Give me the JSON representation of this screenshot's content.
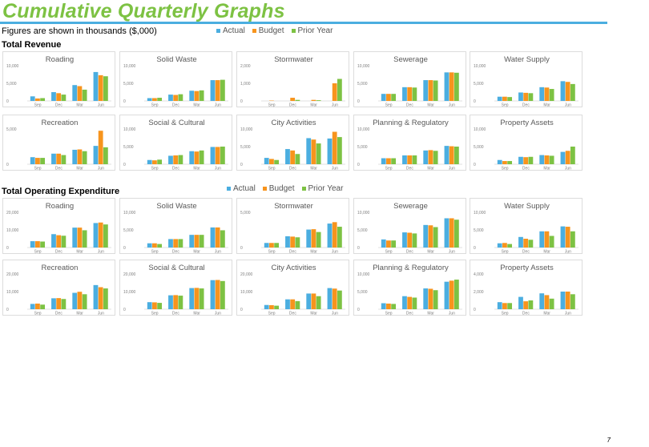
{
  "page": {
    "title": "Cumulative Quarterly Graphs",
    "subtitle": "Figures are shown in thousands ($,000)",
    "page_number": "7",
    "legend": [
      {
        "label": "Actual",
        "color": "#4baee0"
      },
      {
        "label": "Budget",
        "color": "#f7941d"
      },
      {
        "label": "Prior Year",
        "color": "#7dc243"
      }
    ],
    "sections": [
      {
        "title": "Total Revenue"
      },
      {
        "title": "Total Operating Expenditure"
      }
    ]
  },
  "chart_data": [
    {
      "id": "rev-roading",
      "type": "bar",
      "title": "Roading",
      "categories": [
        "Sep",
        "Dec",
        "Mar",
        "Jun"
      ],
      "ylim": [
        0,
        10000
      ],
      "yticks": [
        "0",
        "5,000",
        "10,000"
      ],
      "series": [
        {
          "name": "Actual",
          "values": [
            1300,
            2500,
            4500,
            8200
          ]
        },
        {
          "name": "Budget",
          "values": [
            700,
            2200,
            4200,
            7300
          ]
        },
        {
          "name": "Prior Year",
          "values": [
            800,
            1800,
            3200,
            7000
          ]
        }
      ]
    },
    {
      "id": "rev-solid-waste",
      "type": "bar",
      "title": "Solid Waste",
      "categories": [
        "Sep",
        "Dec",
        "Mar",
        "Jun"
      ],
      "ylim": [
        0,
        10000
      ],
      "yticks": [
        "0",
        "5,000",
        "10,000"
      ],
      "series": [
        {
          "name": "Actual",
          "values": [
            800,
            1800,
            2900,
            5900
          ]
        },
        {
          "name": "Budget",
          "values": [
            800,
            1700,
            2800,
            5900
          ]
        },
        {
          "name": "Prior Year",
          "values": [
            900,
            1900,
            3000,
            6000
          ]
        }
      ]
    },
    {
      "id": "rev-stormwater",
      "type": "bar",
      "title": "Stormwater",
      "categories": [
        "Sep",
        "Dec",
        "Mar",
        "Jun"
      ],
      "ylim": [
        0,
        2000
      ],
      "yticks": [
        "0",
        "1,000",
        "2,000"
      ],
      "series": [
        {
          "name": "Actual",
          "values": [
            0,
            0,
            0,
            0
          ]
        },
        {
          "name": "Budget",
          "values": [
            20,
            180,
            60,
            1000
          ]
        },
        {
          "name": "Prior Year",
          "values": [
            0,
            60,
            40,
            1250
          ]
        }
      ]
    },
    {
      "id": "rev-sewerage",
      "type": "bar",
      "title": "Sewerage",
      "categories": [
        "Sep",
        "Dec",
        "Mar",
        "Jun"
      ],
      "ylim": [
        0,
        10000
      ],
      "yticks": [
        "0",
        "5,000",
        "10,000"
      ],
      "series": [
        {
          "name": "Actual",
          "values": [
            2000,
            3900,
            5900,
            8100
          ]
        },
        {
          "name": "Budget",
          "values": [
            2000,
            3900,
            5900,
            8100
          ]
        },
        {
          "name": "Prior Year",
          "values": [
            2000,
            3800,
            5800,
            8000
          ]
        }
      ]
    },
    {
      "id": "rev-water-supply",
      "type": "bar",
      "title": "Water Supply",
      "categories": [
        "Sep",
        "Dec",
        "Mar",
        "Jun"
      ],
      "ylim": [
        0,
        10000
      ],
      "yticks": [
        "0",
        "5,000",
        "10,000"
      ],
      "series": [
        {
          "name": "Actual",
          "values": [
            1200,
            2400,
            3900,
            5600
          ]
        },
        {
          "name": "Budget",
          "values": [
            1200,
            2300,
            3800,
            5400
          ]
        },
        {
          "name": "Prior Year",
          "values": [
            1100,
            2200,
            3400,
            4800
          ]
        }
      ]
    },
    {
      "id": "rev-recreation",
      "type": "bar",
      "title": "Recreation",
      "categories": [
        "Sep",
        "Dec",
        "Mar",
        "Jun"
      ],
      "ylim": [
        0,
        5000
      ],
      "yticks": [
        "0",
        "5,000"
      ],
      "series": [
        {
          "name": "Actual",
          "values": [
            1000,
            1500,
            2050,
            2600
          ]
        },
        {
          "name": "Budget",
          "values": [
            900,
            1500,
            2100,
            4750
          ]
        },
        {
          "name": "Prior Year",
          "values": [
            900,
            1300,
            1850,
            2400
          ]
        }
      ]
    },
    {
      "id": "rev-social-cultural",
      "type": "bar",
      "title": "Social & Cultural",
      "categories": [
        "Sep",
        "Dec",
        "Mar",
        "Jun"
      ],
      "ylim": [
        0,
        10000
      ],
      "yticks": [
        "0",
        "5,000",
        "10,000"
      ],
      "series": [
        {
          "name": "Actual",
          "values": [
            1200,
            2400,
            3700,
            4900
          ]
        },
        {
          "name": "Budget",
          "values": [
            1100,
            2500,
            3600,
            4900
          ]
        },
        {
          "name": "Prior Year",
          "values": [
            1300,
            2600,
            3900,
            5000
          ]
        }
      ]
    },
    {
      "id": "rev-city-activities",
      "type": "bar",
      "title": "City Activities",
      "categories": [
        "Sep",
        "Dec",
        "Mar",
        "Jun"
      ],
      "ylim": [
        0,
        10000
      ],
      "yticks": [
        "0",
        "5,000",
        "10,000"
      ],
      "series": [
        {
          "name": "Actual",
          "values": [
            1800,
            4300,
            7400,
            7300
          ]
        },
        {
          "name": "Budget",
          "values": [
            1500,
            3900,
            7000,
            9200
          ]
        },
        {
          "name": "Prior Year",
          "values": [
            1200,
            2900,
            5900,
            7700
          ]
        }
      ]
    },
    {
      "id": "rev-planning-regulatory",
      "type": "bar",
      "title": "Planning & Regulatory",
      "categories": [
        "Sep",
        "Dec",
        "Mar",
        "Jun"
      ],
      "ylim": [
        0,
        10000
      ],
      "yticks": [
        "0",
        "5,000",
        "10,000"
      ],
      "series": [
        {
          "name": "Actual",
          "values": [
            1700,
            2500,
            3900,
            5200
          ]
        },
        {
          "name": "Budget",
          "values": [
            1700,
            2500,
            4000,
            5100
          ]
        },
        {
          "name": "Prior Year",
          "values": [
            1700,
            2500,
            3800,
            5000
          ]
        }
      ]
    },
    {
      "id": "rev-property-assets",
      "type": "bar",
      "title": "Property Assets",
      "categories": [
        "Sep",
        "Dec",
        "Mar",
        "Jun"
      ],
      "ylim": [
        0,
        10000
      ],
      "yticks": [
        "0",
        "5,000",
        "10,000"
      ],
      "series": [
        {
          "name": "Actual",
          "values": [
            1200,
            2100,
            2600,
            3500
          ]
        },
        {
          "name": "Budget",
          "values": [
            900,
            2000,
            2500,
            3800
          ]
        },
        {
          "name": "Prior Year",
          "values": [
            900,
            2100,
            2400,
            5000
          ]
        }
      ]
    },
    {
      "id": "exp-roading",
      "type": "bar",
      "title": "Roading",
      "categories": [
        "Sep",
        "Dec",
        "Mar",
        "Jun"
      ],
      "ylim": [
        0,
        20000
      ],
      "yticks": [
        "0",
        "10,000",
        "20,000"
      ],
      "series": [
        {
          "name": "Actual",
          "values": [
            3600,
            7600,
            11300,
            13900
          ]
        },
        {
          "name": "Budget",
          "values": [
            3600,
            7000,
            11300,
            14200
          ]
        },
        {
          "name": "Prior Year",
          "values": [
            3400,
            6700,
            9800,
            13100
          ]
        }
      ]
    },
    {
      "id": "exp-solid-waste",
      "type": "bar",
      "title": "Solid Waste",
      "categories": [
        "Sep",
        "Dec",
        "Mar",
        "Jun"
      ],
      "ylim": [
        0,
        10000
      ],
      "yticks": [
        "0",
        "5,000",
        "10,000"
      ],
      "series": [
        {
          "name": "Actual",
          "values": [
            1200,
            2400,
            3600,
            5700
          ]
        },
        {
          "name": "Budget",
          "values": [
            1200,
            2400,
            3600,
            5700
          ]
        },
        {
          "name": "Prior Year",
          "values": [
            1000,
            2400,
            3600,
            4900
          ]
        }
      ]
    },
    {
      "id": "exp-stormwater",
      "type": "bar",
      "title": "Stormwater",
      "categories": [
        "Sep",
        "Dec",
        "Mar",
        "Jun"
      ],
      "ylim": [
        0,
        10000
      ],
      "yticks": [
        "0",
        "5,000"
      ],
      "series": [
        {
          "name": "Actual",
          "values": [
            1300,
            3200,
            5100,
            6800
          ]
        },
        {
          "name": "Budget",
          "values": [
            1300,
            3100,
            5200,
            7200
          ]
        },
        {
          "name": "Prior Year",
          "values": [
            1300,
            2900,
            4400,
            5900
          ]
        }
      ]
    },
    {
      "id": "exp-sewerage",
      "type": "bar",
      "title": "Sewerage",
      "categories": [
        "Sep",
        "Dec",
        "Mar",
        "Jun"
      ],
      "ylim": [
        0,
        10000
      ],
      "yticks": [
        "0",
        "5,000",
        "10,000"
      ],
      "series": [
        {
          "name": "Actual",
          "values": [
            2300,
            4300,
            6400,
            8300
          ]
        },
        {
          "name": "Budget",
          "values": [
            2000,
            4200,
            6300,
            8300
          ]
        },
        {
          "name": "Prior Year",
          "values": [
            2000,
            4000,
            5800,
            7900
          ]
        }
      ]
    },
    {
      "id": "exp-water-supply",
      "type": "bar",
      "title": "Water Supply",
      "categories": [
        "Sep",
        "Dec",
        "Mar",
        "Jun"
      ],
      "ylim": [
        0,
        10000
      ],
      "yticks": [
        "0",
        "5,000",
        "10,000"
      ],
      "series": [
        {
          "name": "Actual",
          "values": [
            1200,
            3000,
            4600,
            6000
          ]
        },
        {
          "name": "Budget",
          "values": [
            1300,
            2500,
            4600,
            5900
          ]
        },
        {
          "name": "Prior Year",
          "values": [
            1000,
            2200,
            3300,
            4600
          ]
        }
      ]
    },
    {
      "id": "exp-recreation",
      "type": "bar",
      "title": "Recreation",
      "categories": [
        "Sep",
        "Dec",
        "Mar",
        "Jun"
      ],
      "ylim": [
        0,
        20000
      ],
      "yticks": [
        "0",
        "10,000",
        "20,000"
      ],
      "series": [
        {
          "name": "Actual",
          "values": [
            3000,
            6200,
            9300,
            13700
          ]
        },
        {
          "name": "Budget",
          "values": [
            3200,
            6300,
            9900,
            12500
          ]
        },
        {
          "name": "Prior Year",
          "values": [
            2600,
            5800,
            8500,
            11800
          ]
        }
      ]
    },
    {
      "id": "exp-social-cultural",
      "type": "bar",
      "title": "Social & Cultural",
      "categories": [
        "Sep",
        "Dec",
        "Mar",
        "Jun"
      ],
      "ylim": [
        0,
        20000
      ],
      "yticks": [
        "0",
        "10,000",
        "20,000"
      ],
      "series": [
        {
          "name": "Actual",
          "values": [
            4000,
            7900,
            12000,
            16500
          ]
        },
        {
          "name": "Budget",
          "values": [
            3900,
            8000,
            12100,
            16600
          ]
        },
        {
          "name": "Prior Year",
          "values": [
            3600,
            7700,
            11800,
            16000
          ]
        }
      ]
    },
    {
      "id": "exp-city-activities",
      "type": "bar",
      "title": "City Activities",
      "categories": [
        "Sep",
        "Dec",
        "Mar",
        "Jun"
      ],
      "ylim": [
        0,
        20000
      ],
      "yticks": [
        "0",
        "10,000",
        "20,000"
      ],
      "series": [
        {
          "name": "Actual",
          "values": [
            2400,
            5600,
            8900,
            12000
          ]
        },
        {
          "name": "Budget",
          "values": [
            2300,
            5600,
            8900,
            11700
          ]
        },
        {
          "name": "Prior Year",
          "values": [
            2000,
            4600,
            7400,
            10600
          ]
        }
      ]
    },
    {
      "id": "exp-planning-regulatory",
      "type": "bar",
      "title": "Planning & Regulatory",
      "categories": [
        "Sep",
        "Dec",
        "Mar",
        "Jun"
      ],
      "ylim": [
        0,
        10000
      ],
      "yticks": [
        "0",
        "5,000",
        "10,000"
      ],
      "series": [
        {
          "name": "Actual",
          "values": [
            1700,
            3700,
            5900,
            7800
          ]
        },
        {
          "name": "Budget",
          "values": [
            1600,
            3500,
            5800,
            8100
          ]
        },
        {
          "name": "Prior Year",
          "values": [
            1500,
            3300,
            5400,
            8400
          ]
        }
      ]
    },
    {
      "id": "exp-property-assets",
      "type": "bar",
      "title": "Property Assets",
      "categories": [
        "Sep",
        "Dec",
        "Mar",
        "Jun"
      ],
      "ylim": [
        0,
        4000
      ],
      "yticks": [
        "0",
        "2,000",
        "4,000"
      ],
      "series": [
        {
          "name": "Actual",
          "values": [
            800,
            1400,
            1800,
            2000
          ]
        },
        {
          "name": "Budget",
          "values": [
            700,
            900,
            1600,
            2000
          ]
        },
        {
          "name": "Prior Year",
          "values": [
            700,
            1000,
            1200,
            1700
          ]
        }
      ]
    }
  ]
}
